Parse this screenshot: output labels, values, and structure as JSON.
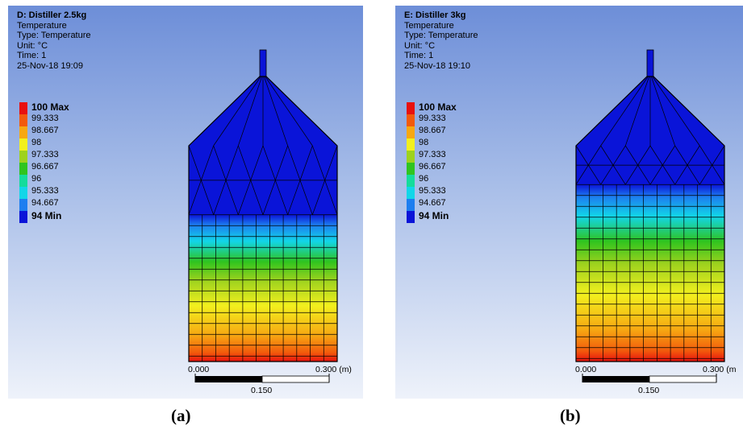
{
  "panels": [
    {
      "title": "D: Distiller 2.5kg",
      "lines": [
        "Temperature",
        "Type: Temperature",
        "Unit: °C",
        "Time: 1",
        "25-Nov-18 19:09"
      ],
      "legend": [
        {
          "label": "100 Max",
          "color": "#e8100e"
        },
        {
          "label": "99.333",
          "color": "#f25a0c"
        },
        {
          "label": "98.667",
          "color": "#f7a812"
        },
        {
          "label": "98",
          "color": "#f2f01e"
        },
        {
          "label": "97.333",
          "color": "#9ed21e"
        },
        {
          "label": "96.667",
          "color": "#2fc41f"
        },
        {
          "label": "96",
          "color": "#14dc9c"
        },
        {
          "label": "95.333",
          "color": "#12d6e8"
        },
        {
          "label": "94.667",
          "color": "#1d7ef0"
        },
        {
          "label": "94 Min",
          "color": "#0a14d8"
        }
      ],
      "scale": {
        "left_label": "0.000",
        "right_label": "0.300 (m)",
        "mid_label": "0.150"
      },
      "caption": "(a)",
      "interface_fraction": 0.32
    },
    {
      "title": "E: Distiller 3kg",
      "lines": [
        "Temperature",
        "Type: Temperature",
        "Unit: °C",
        "Time: 1",
        "25-Nov-18 19:10"
      ],
      "legend": [
        {
          "label": "100 Max",
          "color": "#e8100e"
        },
        {
          "label": "99.333",
          "color": "#f25a0c"
        },
        {
          "label": "98.667",
          "color": "#f7a812"
        },
        {
          "label": "98",
          "color": "#f2f01e"
        },
        {
          "label": "97.333",
          "color": "#9ed21e"
        },
        {
          "label": "96.667",
          "color": "#2fc41f"
        },
        {
          "label": "96",
          "color": "#14dc9c"
        },
        {
          "label": "95.333",
          "color": "#12d6e8"
        },
        {
          "label": "94.667",
          "color": "#1d7ef0"
        },
        {
          "label": "94 Min",
          "color": "#0a14d8"
        }
      ],
      "scale": {
        "left_label": "0.000",
        "right_label": "0.300 (m",
        "mid_label": "0.150"
      },
      "caption": "(b)",
      "interface_fraction": 0.18
    }
  ]
}
